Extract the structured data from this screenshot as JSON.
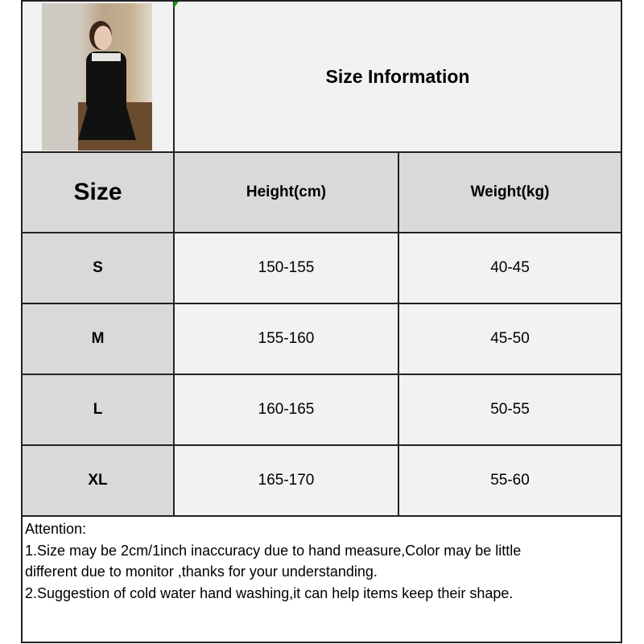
{
  "title": "Size Information",
  "headers": {
    "size": "Size",
    "height": "Height(cm)",
    "weight": "Weight(kg)"
  },
  "rows": [
    {
      "size": "S",
      "height": "150-155",
      "weight": "40-45"
    },
    {
      "size": "M",
      "height": "155-160",
      "weight": "45-50"
    },
    {
      "size": "L",
      "height": "160-165",
      "weight": "50-55"
    },
    {
      "size": "XL",
      "height": "165-170",
      "weight": "55-60"
    }
  ],
  "notes": {
    "heading": "Attention:",
    "lines": [
      "1.Size may be 2cm/1inch inaccuracy due to hand measure,Color may be little",
      "different due to monitor ,thanks for your understanding.",
      "2.Suggestion of cold water hand washing,it can help items keep their shape."
    ]
  },
  "colors": {
    "header_bg": "#d9d9d9",
    "cell_bg": "#f2f2f2",
    "border": "#222222"
  }
}
